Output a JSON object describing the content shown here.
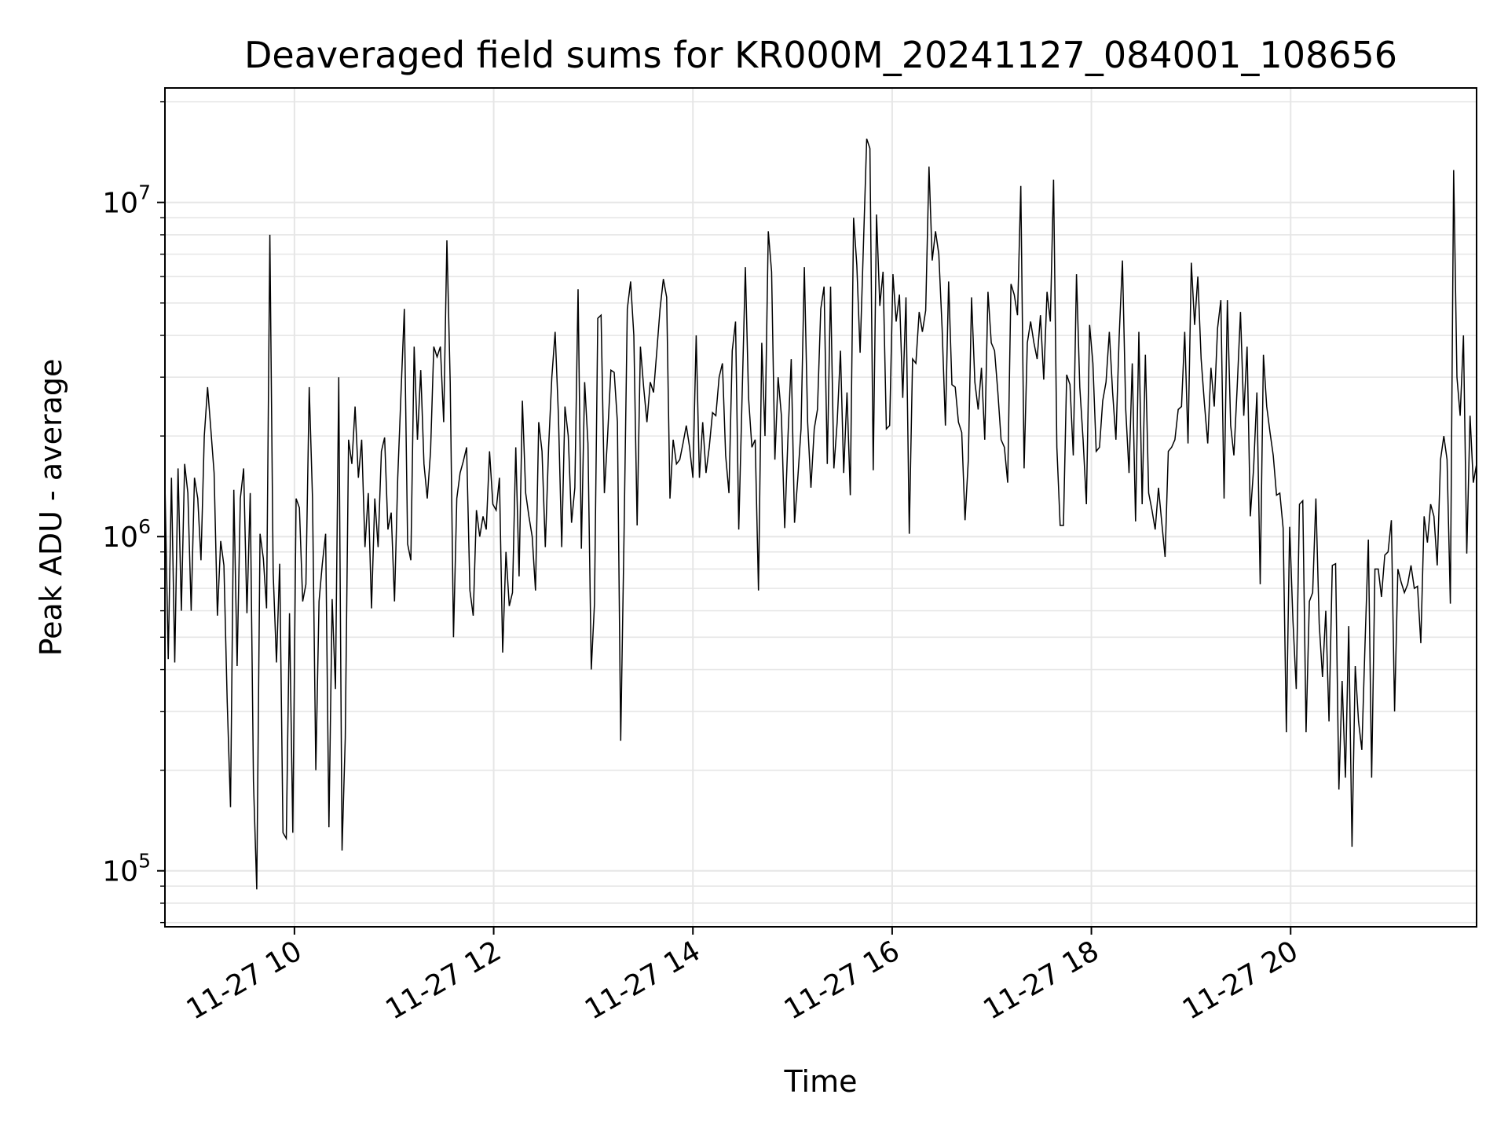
{
  "chart_data": {
    "type": "line",
    "title": "Deaveraged field sums for KR000M_20241127_084001_108656",
    "xlabel": "Time",
    "ylabel": "Peak ADU - average",
    "yscale": "log",
    "ylim": [
      68000,
      22000000
    ],
    "xlim": [
      "2024-11-27 08:42",
      "2024-11-27 21:52"
    ],
    "grid": true,
    "line_color": "#000000",
    "x_tick_labels": [
      "11-27 10",
      "11-27 12",
      "11-27 14",
      "11-27 16",
      "11-27 18",
      "11-27 20"
    ],
    "y_tick_labels": [
      {
        "base": "10",
        "exp": "5",
        "value": 100000
      },
      {
        "base": "10",
        "exp": "6",
        "value": 1000000
      },
      {
        "base": "10",
        "exp": "7",
        "value": 10000000
      }
    ],
    "series": [
      {
        "x_start": "2024-11-27 08:42",
        "x_end": "2024-11-27 21:52",
        "values": [
          1450000,
          430000,
          1500000,
          420000,
          1600000,
          600000,
          1650000,
          1350000,
          600000,
          1500000,
          1300000,
          850000,
          2000000,
          2800000,
          2100000,
          1550000,
          580000,
          970000,
          820000,
          320000,
          155000,
          1380000,
          410000,
          1300000,
          1600000,
          590000,
          1350000,
          185000,
          88000,
          1020000,
          860000,
          610000,
          8000000,
          780000,
          420000,
          830000,
          130000,
          125000,
          590000,
          130000,
          1300000,
          1220000,
          640000,
          720000,
          2800000,
          1300000,
          200000,
          640000,
          830000,
          1020000,
          135000,
          650000,
          350000,
          3000000,
          115000,
          250000,
          1950000,
          1650000,
          2450000,
          1500000,
          1950000,
          930000,
          1350000,
          610000,
          1300000,
          930000,
          1800000,
          1980000,
          1050000,
          1180000,
          640000,
          1500000,
          2700000,
          4800000,
          950000,
          850000,
          3700000,
          1950000,
          3150000,
          1650000,
          1300000,
          1800000,
          3700000,
          3450000,
          3700000,
          2200000,
          7700000,
          2900000,
          500000,
          1300000,
          1550000,
          1680000,
          1850000,
          690000,
          580000,
          1200000,
          1000000,
          1150000,
          1050000,
          1800000,
          1250000,
          1200000,
          1500000,
          450000,
          900000,
          620000,
          680000,
          1850000,
          760000,
          2550000,
          1350000,
          1150000,
          1000000,
          690000,
          2200000,
          1800000,
          930000,
          1850000,
          3000000,
          4100000,
          2300000,
          930000,
          2450000,
          2000000,
          1100000,
          1400000,
          5500000,
          920000,
          2900000,
          1900000,
          400000,
          630000,
          4500000,
          4600000,
          1350000,
          2000000,
          3150000,
          3100000,
          2200000,
          245000,
          1000000,
          4800000,
          5800000,
          4000000,
          1080000,
          3700000,
          2800000,
          2200000,
          2900000,
          2700000,
          3600000,
          4800000,
          5900000,
          5200000,
          1300000,
          1950000,
          1650000,
          1700000,
          1900000,
          2150000,
          1850000,
          1500000,
          4000000,
          1500000,
          2200000,
          1550000,
          1850000,
          2350000,
          2300000,
          3000000,
          3300000,
          1750000,
          1350000,
          3600000,
          4400000,
          1050000,
          2600000,
          6400000,
          2600000,
          1850000,
          1950000,
          690000,
          3800000,
          2000000,
          8200000,
          6200000,
          1700000,
          3000000,
          2300000,
          1060000,
          2000000,
          3400000,
          1100000,
          1500000,
          2100000,
          6400000,
          2200000,
          1400000,
          2100000,
          2400000,
          4800000,
          5600000,
          1650000,
          5600000,
          1600000,
          2200000,
          3600000,
          1550000,
          2700000,
          1330000,
          9000000,
          6500000,
          3550000,
          7400000,
          15500000,
          14500000,
          1580000,
          9200000,
          4900000,
          6200000,
          2100000,
          2150000,
          6100000,
          4400000,
          5300000,
          2600000,
          5200000,
          1020000,
          3400000,
          3300000,
          4700000,
          4100000,
          4750000,
          12800000,
          6700000,
          8200000,
          7000000,
          4200000,
          2150000,
          5800000,
          2850000,
          2800000,
          2200000,
          2050000,
          1120000,
          1700000,
          5200000,
          2900000,
          2400000,
          3200000,
          1950000,
          5400000,
          3800000,
          3600000,
          2700000,
          1950000,
          1850000,
          1450000,
          5700000,
          5300000,
          4600000,
          11200000,
          1600000,
          3800000,
          4400000,
          3800000,
          3400000,
          4600000,
          2950000,
          5400000,
          4400000,
          11700000,
          1850000,
          1080000,
          1080000,
          3050000,
          2850000,
          1750000,
          6100000,
          2800000,
          1950000,
          1250000,
          4300000,
          3300000,
          1800000,
          1850000,
          2550000,
          2900000,
          4100000,
          2700000,
          1950000,
          3950000,
          6700000,
          2400000,
          1550000,
          3300000,
          1110000,
          4100000,
          1250000,
          3500000,
          1350000,
          1200000,
          1050000,
          1400000,
          1100000,
          870000,
          1800000,
          1850000,
          1950000,
          2400000,
          2450000,
          4100000,
          1900000,
          6600000,
          4300000,
          6000000,
          3400000,
          2500000,
          1900000,
          3200000,
          2450000,
          4200000,
          5100000,
          1300000,
          5100000,
          2150000,
          1750000,
          2800000,
          4700000,
          2300000,
          3700000,
          1150000,
          1600000,
          2700000,
          720000,
          3500000,
          2450000,
          2050000,
          1750000,
          1330000,
          1350000,
          1060000,
          260000,
          1070000,
          560000,
          350000,
          1250000,
          1280000,
          260000,
          640000,
          680000,
          1300000,
          550000,
          380000,
          600000,
          280000,
          820000,
          830000,
          175000,
          370000,
          190000,
          540000,
          118000,
          410000,
          280000,
          230000,
          480000,
          980000,
          190000,
          800000,
          800000,
          660000,
          880000,
          900000,
          1120000,
          300000,
          800000,
          730000,
          680000,
          720000,
          820000,
          700000,
          710000,
          480000,
          1150000,
          960000,
          1250000,
          1150000,
          820000,
          1700000,
          2000000,
          1700000,
          630000,
          12500000,
          3000000,
          2300000,
          4000000,
          890000,
          2300000,
          1450000,
          1650000
        ]
      }
    ]
  }
}
